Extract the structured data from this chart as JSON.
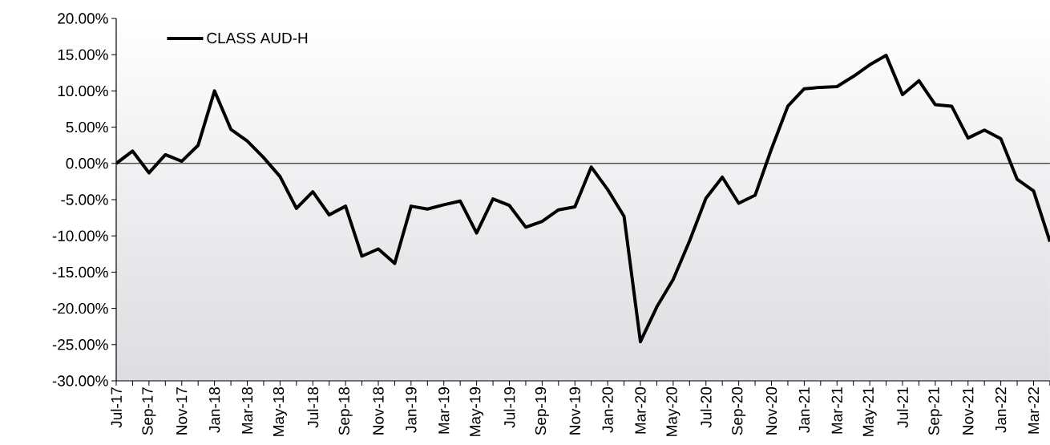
{
  "chart_data": {
    "type": "line",
    "categories": [
      "Jul-17",
      null,
      "Sep-17",
      null,
      "Nov-17",
      null,
      "Jan-18",
      null,
      "Mar-18",
      null,
      "May-18",
      null,
      "Jul-18",
      null,
      "Sep-18",
      null,
      "Nov-18",
      null,
      "Jan-19",
      null,
      "Mar-19",
      null,
      "May-19",
      null,
      "Jul-19",
      null,
      "Sep-19",
      null,
      "Nov-19",
      null,
      "Jan-20",
      null,
      "Mar-20",
      null,
      "May-20",
      null,
      "Jul-20",
      null,
      "Sep-20",
      null,
      "Nov-20",
      null,
      "Jan-21",
      null,
      "Mar-21",
      null,
      "May-21",
      null,
      "Jul-21",
      null,
      "Sep-21",
      null,
      "Nov-21",
      null,
      "Jan-22",
      null,
      "Mar-22",
      null
    ],
    "series": [
      {
        "name": "CLASS AUD-H",
        "color": "#000000",
        "values": [
          0,
          1.7,
          -1.3,
          1.2,
          0.3,
          2.5,
          10.0,
          4.7,
          3.1,
          0.8,
          -1.8,
          -6.2,
          -3.9,
          -7.1,
          -5.9,
          -12.8,
          -11.8,
          -13.8,
          -5.9,
          -6.3,
          -5.7,
          -5.2,
          -9.6,
          -4.9,
          -5.8,
          -8.8,
          -8.0,
          -6.4,
          -6.0,
          -0.5,
          -3.6,
          -7.3,
          -24.6,
          -19.8,
          -16.0,
          -10.7,
          -4.8,
          -1.9,
          -5.5,
          -4.4,
          2.0,
          7.9,
          10.3,
          10.5,
          10.6,
          12.0,
          13.6,
          14.9,
          9.5,
          11.4,
          8.1,
          7.9,
          3.5,
          4.6,
          3.4,
          -2.2,
          -3.8,
          -10.8
        ]
      }
    ],
    "ylim": [
      -30,
      20
    ],
    "yticks": [
      {
        "value": -30,
        "label": "-30.00%"
      },
      {
        "value": -25,
        "label": "-25.00%"
      },
      {
        "value": -20,
        "label": "-20.00%"
      },
      {
        "value": -15,
        "label": "-15.00%"
      },
      {
        "value": -10,
        "label": "-10.00%"
      },
      {
        "value": -5,
        "label": "-5.00%"
      },
      {
        "value": 0,
        "label": "0.00%"
      },
      {
        "value": 5,
        "label": "5.00%"
      },
      {
        "value": 10,
        "label": "10.00%"
      },
      {
        "value": 15,
        "label": "15.00%"
      },
      {
        "value": 20,
        "label": "20.00%"
      }
    ],
    "legend": "top left",
    "ref_lines": [
      {
        "axis": "y",
        "value": 0,
        "color": "#000000",
        "line_style": "solid"
      }
    ],
    "marker": "none",
    "line_style": "solid"
  }
}
